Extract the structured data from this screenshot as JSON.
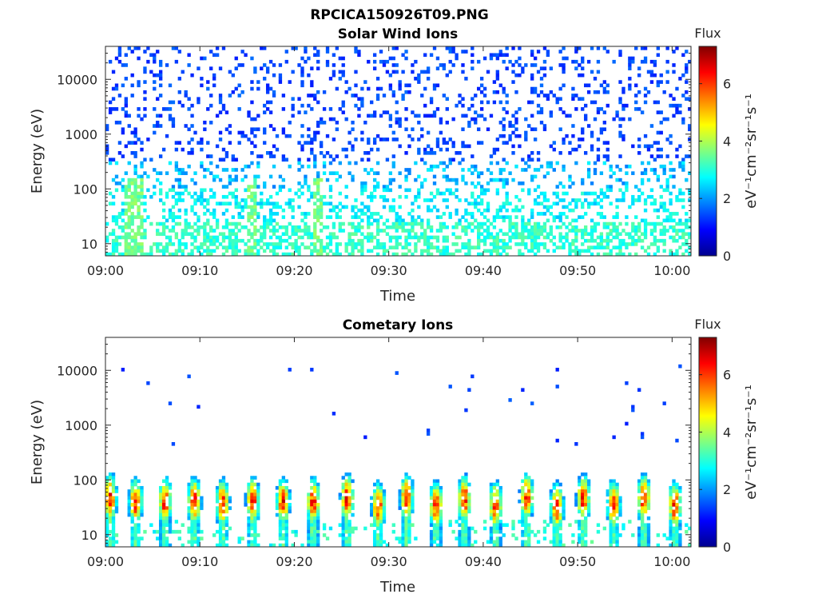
{
  "figure_title": "RPCICA150926T09.PNG",
  "chart_data": [
    {
      "type": "heatmap",
      "title": "Solar Wind Ions",
      "xlabel": "Time",
      "ylabel": "Energy (eV)",
      "x_range": [
        "09:00",
        "10:02"
      ],
      "x_ticks": [
        "09:00",
        "09:10",
        "09:20",
        "09:30",
        "09:40",
        "09:50",
        "10:00"
      ],
      "y_scale": "log",
      "y_range": [
        6,
        40000
      ],
      "y_ticks": [
        "10",
        "100",
        "1000",
        "10000"
      ],
      "y_tick_values": [
        10,
        100,
        1000,
        10000
      ],
      "colorbar": {
        "label": "Flux",
        "unit": "eV⁻¹cm⁻²sr⁻¹s⁻¹",
        "range": [
          0,
          7.3
        ],
        "ticks": [
          "0",
          "2",
          "4",
          "6"
        ],
        "tick_values": [
          0,
          2,
          4,
          6
        ],
        "colormap": "jet"
      },
      "pattern": "sparse",
      "description_values": {
        "high_energy_level": 1.2,
        "low_energy_level": 3.2,
        "spike_minutes": [
          2.5,
          3.5,
          15.5,
          22.5
        ]
      }
    },
    {
      "type": "heatmap",
      "title": "Cometary Ions",
      "xlabel": "Time",
      "ylabel": "Energy (eV)",
      "x_range": [
        "09:00",
        "10:02"
      ],
      "x_ticks": [
        "09:00",
        "09:10",
        "09:20",
        "09:30",
        "09:40",
        "09:50",
        "10:00"
      ],
      "y_scale": "log",
      "y_range": [
        6,
        40000
      ],
      "y_ticks": [
        "10",
        "100",
        "1000",
        "10000"
      ],
      "y_tick_values": [
        10,
        100,
        1000,
        10000
      ],
      "colorbar": {
        "label": "Flux",
        "unit": "eV⁻¹cm⁻²sr⁻¹s⁻¹",
        "range": [
          0,
          7.3
        ],
        "ticks": [
          "0",
          "2",
          "4",
          "6"
        ],
        "tick_values": [
          0,
          2,
          4,
          6
        ],
        "colormap": "jet"
      },
      "pattern": "bursts",
      "burst_minutes": [
        0.5,
        3.2,
        6.3,
        9.4,
        12.4,
        15.6,
        18.8,
        22.0,
        25.6,
        28.9,
        31.9,
        35.0,
        38.0,
        41.3,
        44.6,
        47.8,
        50.6,
        53.8,
        57.0,
        60.3
      ],
      "peak_energy_eV": 40,
      "peak_flux": 6.3
    }
  ]
}
